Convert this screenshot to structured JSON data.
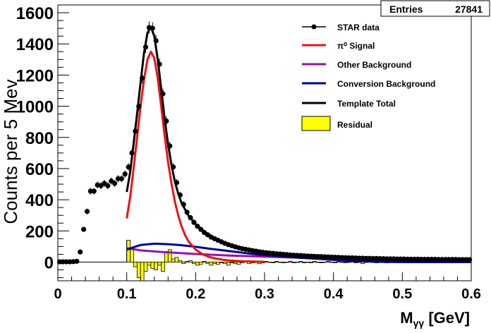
{
  "stats_box": {
    "label": "Entries",
    "value": "27841"
  },
  "legend": [
    {
      "label": "STAR data",
      "kind": "marker",
      "color": "#000000"
    },
    {
      "label": "π⁰ Signal",
      "kind": "line",
      "color": "#ee1111"
    },
    {
      "label": "Other Background",
      "kind": "line",
      "color": "#9911aa"
    },
    {
      "label": "Conversion Background",
      "kind": "line",
      "color": "#000099"
    },
    {
      "label": "Template Total",
      "kind": "line",
      "color": "#000000"
    },
    {
      "label": "Residual",
      "kind": "fill",
      "color": "#ffff00"
    }
  ],
  "chart_data": {
    "type": "line",
    "ylabel": "Counts per 5 Mev",
    "xlabel_main": "M",
    "xlabel_sub": "γγ",
    "xlabel_unit": " [GeV]",
    "xlim": [
      0,
      0.6
    ],
    "ylim": [
      -120,
      1650
    ],
    "x_ticks": [
      "0",
      "0.1",
      "0.2",
      "0.3",
      "0.4",
      "0.5",
      "0.6"
    ],
    "y_ticks": [
      "0",
      "200",
      "400",
      "600",
      "800",
      "1000",
      "1200",
      "1400",
      "1600"
    ],
    "data_points": [
      [
        0.0025,
        2
      ],
      [
        0.0075,
        2
      ],
      [
        0.0125,
        2
      ],
      [
        0.0175,
        2
      ],
      [
        0.0225,
        3
      ],
      [
        0.0275,
        5
      ],
      [
        0.0325,
        65
      ],
      [
        0.0375,
        210
      ],
      [
        0.0425,
        325
      ],
      [
        0.0475,
        455
      ],
      [
        0.0525,
        455
      ],
      [
        0.0575,
        495
      ],
      [
        0.0625,
        490
      ],
      [
        0.0675,
        505
      ],
      [
        0.0725,
        490
      ],
      [
        0.0775,
        520
      ],
      [
        0.0825,
        505
      ],
      [
        0.0875,
        535
      ],
      [
        0.0925,
        535
      ],
      [
        0.0975,
        565
      ],
      [
        0.1025,
        610
      ],
      [
        0.1075,
        700
      ],
      [
        0.1125,
        840
      ],
      [
        0.1175,
        1000
      ],
      [
        0.1225,
        1180
      ],
      [
        0.1275,
        1380
      ],
      [
        0.1325,
        1505
      ],
      [
        0.1375,
        1500
      ],
      [
        0.1425,
        1420
      ],
      [
        0.1475,
        1270
      ],
      [
        0.1525,
        1080
      ],
      [
        0.1575,
        905
      ],
      [
        0.1625,
        745
      ],
      [
        0.1675,
        610
      ],
      [
        0.1725,
        510
      ],
      [
        0.1775,
        430
      ],
      [
        0.1825,
        370
      ],
      [
        0.1875,
        320
      ],
      [
        0.1925,
        285
      ],
      [
        0.1975,
        255
      ],
      [
        0.2025,
        230
      ],
      [
        0.2075,
        210
      ],
      [
        0.2125,
        190
      ],
      [
        0.2175,
        175
      ],
      [
        0.2225,
        160
      ],
      [
        0.2275,
        150
      ],
      [
        0.2325,
        140
      ],
      [
        0.2375,
        130
      ],
      [
        0.2425,
        120
      ],
      [
        0.2475,
        112
      ],
      [
        0.2525,
        105
      ],
      [
        0.2575,
        98
      ],
      [
        0.2625,
        92
      ],
      [
        0.2675,
        86
      ],
      [
        0.2725,
        82
      ],
      [
        0.2775,
        78
      ],
      [
        0.2825,
        74
      ],
      [
        0.2875,
        70
      ],
      [
        0.2925,
        66
      ],
      [
        0.2975,
        63
      ],
      [
        0.3025,
        60
      ],
      [
        0.3075,
        58
      ],
      [
        0.3125,
        56
      ],
      [
        0.3175,
        54
      ],
      [
        0.3225,
        52
      ],
      [
        0.3275,
        50
      ],
      [
        0.3325,
        48
      ],
      [
        0.3375,
        46
      ],
      [
        0.3425,
        44
      ],
      [
        0.3475,
        43
      ],
      [
        0.3525,
        42
      ],
      [
        0.3575,
        40
      ],
      [
        0.3625,
        39
      ],
      [
        0.3675,
        38
      ],
      [
        0.3725,
        37
      ],
      [
        0.3775,
        36
      ],
      [
        0.3825,
        35
      ],
      [
        0.3875,
        34
      ],
      [
        0.3925,
        33
      ],
      [
        0.3975,
        32
      ],
      [
        0.4025,
        31
      ],
      [
        0.4075,
        30
      ],
      [
        0.4125,
        29
      ],
      [
        0.4175,
        28
      ],
      [
        0.4225,
        27
      ],
      [
        0.4275,
        27
      ],
      [
        0.4325,
        26
      ],
      [
        0.4375,
        25
      ],
      [
        0.4425,
        25
      ],
      [
        0.4475,
        24
      ],
      [
        0.4525,
        24
      ],
      [
        0.4575,
        23
      ],
      [
        0.4625,
        23
      ],
      [
        0.4675,
        22
      ],
      [
        0.4725,
        22
      ],
      [
        0.4775,
        21
      ],
      [
        0.4825,
        21
      ],
      [
        0.4875,
        21
      ],
      [
        0.4925,
        20
      ],
      [
        0.4975,
        20
      ],
      [
        0.5025,
        20
      ],
      [
        0.5075,
        19
      ],
      [
        0.5125,
        19
      ],
      [
        0.5175,
        19
      ],
      [
        0.5225,
        19
      ],
      [
        0.5275,
        18
      ],
      [
        0.5325,
        18
      ],
      [
        0.5375,
        18
      ],
      [
        0.5425,
        18
      ],
      [
        0.5475,
        18
      ],
      [
        0.5525,
        17
      ],
      [
        0.5575,
        17
      ],
      [
        0.5625,
        17
      ],
      [
        0.5675,
        17
      ],
      [
        0.5725,
        17
      ],
      [
        0.5775,
        17
      ],
      [
        0.5825,
        16
      ],
      [
        0.5875,
        16
      ],
      [
        0.5925,
        16
      ],
      [
        0.5975,
        16
      ]
    ],
    "template_total": [
      [
        0.1,
        450
      ],
      [
        0.105,
        580
      ],
      [
        0.11,
        760
      ],
      [
        0.115,
        950
      ],
      [
        0.12,
        1150
      ],
      [
        0.125,
        1340
      ],
      [
        0.13,
        1470
      ],
      [
        0.135,
        1510
      ],
      [
        0.14,
        1450
      ],
      [
        0.145,
        1300
      ],
      [
        0.15,
        1110
      ],
      [
        0.155,
        920
      ],
      [
        0.16,
        755
      ],
      [
        0.165,
        620
      ],
      [
        0.17,
        515
      ],
      [
        0.175,
        435
      ],
      [
        0.18,
        375
      ],
      [
        0.19,
        295
      ],
      [
        0.2,
        245
      ],
      [
        0.21,
        205
      ],
      [
        0.22,
        175
      ],
      [
        0.23,
        150
      ],
      [
        0.24,
        128
      ],
      [
        0.25,
        112
      ],
      [
        0.26,
        98
      ],
      [
        0.28,
        80
      ],
      [
        0.3,
        68
      ],
      [
        0.32,
        58
      ],
      [
        0.35,
        48
      ],
      [
        0.4,
        38
      ],
      [
        0.45,
        30
      ],
      [
        0.5,
        24
      ],
      [
        0.55,
        20
      ],
      [
        0.6,
        18
      ]
    ],
    "pi0_signal": [
      [
        0.1,
        280
      ],
      [
        0.105,
        420
      ],
      [
        0.11,
        600
      ],
      [
        0.115,
        800
      ],
      [
        0.12,
        1000
      ],
      [
        0.125,
        1170
      ],
      [
        0.13,
        1300
      ],
      [
        0.135,
        1350
      ],
      [
        0.14,
        1310
      ],
      [
        0.145,
        1180
      ],
      [
        0.15,
        1000
      ],
      [
        0.155,
        810
      ],
      [
        0.16,
        640
      ],
      [
        0.165,
        500
      ],
      [
        0.17,
        385
      ],
      [
        0.175,
        295
      ],
      [
        0.18,
        225
      ],
      [
        0.185,
        170
      ],
      [
        0.19,
        130
      ],
      [
        0.2,
        80
      ],
      [
        0.21,
        50
      ],
      [
        0.22,
        32
      ],
      [
        0.23,
        22
      ],
      [
        0.24,
        15
      ],
      [
        0.25,
        10
      ],
      [
        0.27,
        5
      ],
      [
        0.3,
        2
      ]
    ],
    "other_background": [
      [
        0.1,
        90
      ],
      [
        0.12,
        75
      ],
      [
        0.15,
        65
      ],
      [
        0.2,
        52
      ],
      [
        0.25,
        42
      ],
      [
        0.3,
        35
      ],
      [
        0.35,
        28
      ],
      [
        0.4,
        22
      ],
      [
        0.45,
        16
      ],
      [
        0.5,
        12
      ],
      [
        0.55,
        8
      ],
      [
        0.6,
        5
      ]
    ],
    "conversion_background": [
      [
        0.1,
        80
      ],
      [
        0.12,
        110
      ],
      [
        0.14,
        118
      ],
      [
        0.16,
        115
      ],
      [
        0.18,
        108
      ],
      [
        0.2,
        98
      ],
      [
        0.22,
        86
      ],
      [
        0.25,
        70
      ],
      [
        0.28,
        54
      ],
      [
        0.3,
        45
      ],
      [
        0.35,
        28
      ],
      [
        0.4,
        14
      ],
      [
        0.43,
        6
      ],
      [
        0.46,
        2
      ],
      [
        0.5,
        0
      ],
      [
        0.55,
        0
      ],
      [
        0.6,
        0
      ]
    ],
    "residual": [
      [
        0.1,
        140
      ],
      [
        0.105,
        90
      ],
      [
        0.11,
        -30
      ],
      [
        0.115,
        -100
      ],
      [
        0.12,
        -120
      ],
      [
        0.125,
        -60
      ],
      [
        0.13,
        -20
      ],
      [
        0.135,
        -40
      ],
      [
        0.14,
        -50
      ],
      [
        0.145,
        -20
      ],
      [
        0.15,
        -60
      ],
      [
        0.155,
        60
      ],
      [
        0.16,
        80
      ],
      [
        0.165,
        20
      ],
      [
        0.17,
        30
      ],
      [
        0.175,
        10
      ],
      [
        0.18,
        -10
      ],
      [
        0.185,
        5
      ],
      [
        0.19,
        10
      ],
      [
        0.195,
        -10
      ],
      [
        0.2,
        -20
      ],
      [
        0.205,
        -15
      ],
      [
        0.21,
        5
      ],
      [
        0.215,
        -10
      ],
      [
        0.22,
        -20
      ],
      [
        0.225,
        -10
      ],
      [
        0.23,
        -15
      ],
      [
        0.235,
        -5
      ],
      [
        0.24,
        -10
      ],
      [
        0.245,
        -20
      ],
      [
        0.25,
        -5
      ],
      [
        0.255,
        -10
      ],
      [
        0.26,
        -15
      ],
      [
        0.265,
        -5
      ],
      [
        0.27,
        5
      ],
      [
        0.275,
        -10
      ],
      [
        0.28,
        -5
      ],
      [
        0.285,
        0
      ],
      [
        0.29,
        -10
      ],
      [
        0.295,
        -5
      ],
      [
        0.3,
        5
      ],
      [
        0.305,
        0
      ],
      [
        0.31,
        -5
      ],
      [
        0.315,
        5
      ],
      [
        0.32,
        0
      ],
      [
        0.325,
        -5
      ],
      [
        0.33,
        0
      ],
      [
        0.335,
        5
      ],
      [
        0.34,
        -5
      ],
      [
        0.345,
        0
      ],
      [
        0.35,
        5
      ],
      [
        0.355,
        -5
      ],
      [
        0.36,
        0
      ],
      [
        0.365,
        -5
      ],
      [
        0.37,
        5
      ],
      [
        0.375,
        0
      ],
      [
        0.38,
        -5
      ],
      [
        0.385,
        0
      ],
      [
        0.39,
        5
      ],
      [
        0.395,
        0
      ],
      [
        0.4,
        -5
      ],
      [
        0.405,
        5
      ],
      [
        0.41,
        0
      ],
      [
        0.415,
        -5
      ],
      [
        0.42,
        0
      ],
      [
        0.425,
        5
      ],
      [
        0.43,
        -5
      ],
      [
        0.435,
        0
      ],
      [
        0.44,
        -10
      ],
      [
        0.445,
        0
      ],
      [
        0.45,
        10
      ],
      [
        0.455,
        0
      ],
      [
        0.46,
        -5
      ],
      [
        0.465,
        5
      ],
      [
        0.47,
        0
      ],
      [
        0.475,
        -5
      ],
      [
        0.48,
        0
      ],
      [
        0.485,
        5
      ],
      [
        0.49,
        0
      ],
      [
        0.495,
        -5
      ],
      [
        0.5,
        0
      ],
      [
        0.505,
        5
      ],
      [
        0.51,
        0
      ],
      [
        0.515,
        -5
      ],
      [
        0.52,
        0
      ],
      [
        0.525,
        5
      ],
      [
        0.53,
        0
      ],
      [
        0.535,
        -5
      ],
      [
        0.54,
        0
      ],
      [
        0.545,
        5
      ],
      [
        0.55,
        0
      ],
      [
        0.555,
        -5
      ],
      [
        0.56,
        0
      ],
      [
        0.565,
        5
      ],
      [
        0.57,
        0
      ],
      [
        0.575,
        -5
      ],
      [
        0.58,
        0
      ],
      [
        0.585,
        5
      ],
      [
        0.59,
        0
      ],
      [
        0.595,
        0
      ]
    ]
  }
}
